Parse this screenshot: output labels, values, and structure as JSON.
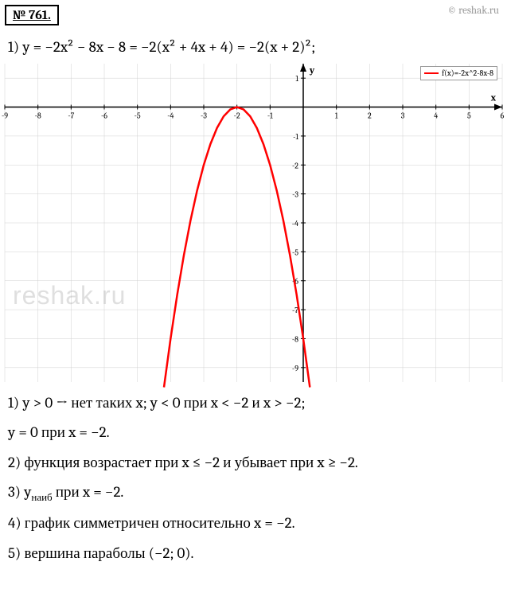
{
  "header": {
    "problem_number": "№ 761.",
    "copyright": "© reshak.ru"
  },
  "equation": "1) y = −2x² − 8x − 8 = −2(x² + 4x + 4) = −2(x + 2)²;",
  "chart": {
    "type": "line",
    "legend_label": "f(x)=-2x^2-8x-8",
    "legend_color": "#ff0000",
    "x_axis_label": "x",
    "y_axis_label": "y",
    "xlim": [
      -9,
      6
    ],
    "ylim": [
      -9.5,
      1.5
    ],
    "x_ticks": [
      -9,
      -8,
      -7,
      -6,
      -5,
      -4,
      -3,
      -2,
      -1,
      1,
      2,
      3,
      4,
      5,
      6
    ],
    "y_ticks": [
      1,
      -1,
      -2,
      -3,
      -4,
      -5,
      -6,
      -7,
      -8,
      -9
    ],
    "grid_color": "#d0d0d0",
    "axis_color": "#000000",
    "background_color": "#ffffff",
    "curve_color": "#ff0000",
    "curve_width": 2.5,
    "curve_points": [
      [
        -4.2,
        -9.68
      ],
      [
        -4.0,
        -8.0
      ],
      [
        -3.8,
        -6.48
      ],
      [
        -3.6,
        -5.12
      ],
      [
        -3.4,
        -3.92
      ],
      [
        -3.2,
        -2.88
      ],
      [
        -3.0,
        -2.0
      ],
      [
        -2.8,
        -1.28
      ],
      [
        -2.6,
        -0.72
      ],
      [
        -2.4,
        -0.32
      ],
      [
        -2.2,
        -0.08
      ],
      [
        -2.0,
        0.0
      ],
      [
        -1.8,
        -0.08
      ],
      [
        -1.6,
        -0.32
      ],
      [
        -1.4,
        -0.72
      ],
      [
        -1.2,
        -1.28
      ],
      [
        -1.0,
        -2.0
      ],
      [
        -0.8,
        -2.88
      ],
      [
        -0.6,
        -3.92
      ],
      [
        -0.4,
        -5.12
      ],
      [
        -0.2,
        -6.48
      ],
      [
        0.0,
        -8.0
      ],
      [
        0.2,
        -9.68
      ]
    ],
    "watermark": "reshak.ru"
  },
  "answers": {
    "line1": "1) y > 0 → нет таких x;   y < 0 при x < −2 и x > −2;",
    "line2": "y = 0 при x = −2.",
    "line3": "2) функция возрастает при x ≤ −2 и убывает при x ≥ −2.",
    "line4_prefix": "3) y",
    "line4_sub": "наиб",
    "line4_suffix": " при x = −2.",
    "line5": "4) график симметричен относительно x = −2.",
    "line6": "5) вершина параболы (−2;  0)."
  }
}
